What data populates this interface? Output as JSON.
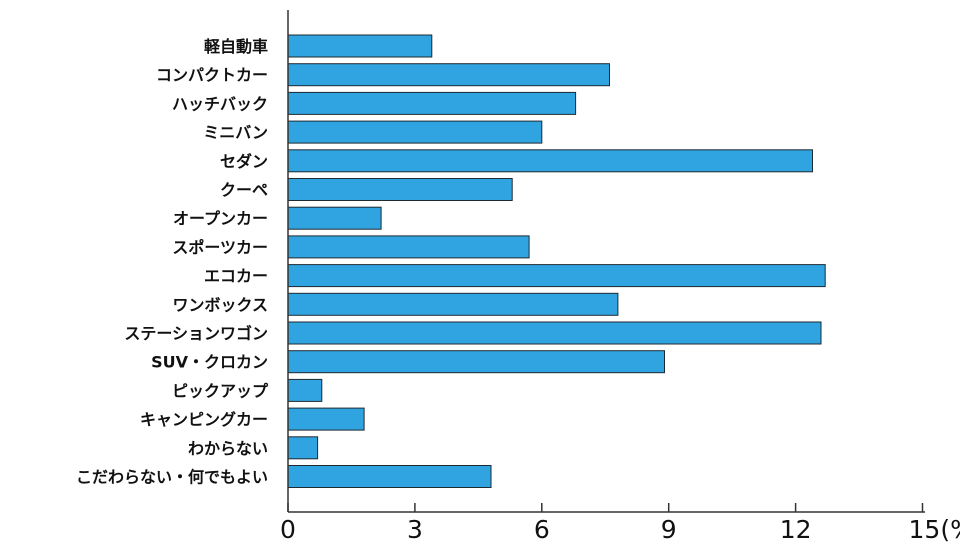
{
  "chart_data": {
    "type": "bar",
    "orientation": "horizontal",
    "title": "",
    "xlabel": "",
    "ylabel": "",
    "unit": "(%)",
    "xlim": [
      0,
      15
    ],
    "xticks": [
      "0",
      "3",
      "6",
      "9",
      "12",
      "15"
    ],
    "grid": false,
    "legend": "none",
    "bar_color": "#2FA4E0",
    "bar_stroke": "#1f2a33",
    "categories": [
      "軽自動車",
      "コンパクトカー",
      "ハッチバック",
      "ミニバン",
      "セダン",
      "クーペ",
      "オープンカー",
      "スポーツカー",
      "エコカー",
      "ワンボックス",
      "ステーションワゴン",
      "SUV・クロカン",
      "ピックアップ",
      "キャンピングカー",
      "わからない",
      "こだわらない・何でもよい"
    ],
    "values": [
      3.4,
      7.6,
      6.8,
      6.0,
      12.4,
      5.3,
      2.2,
      5.7,
      12.7,
      7.8,
      12.6,
      8.9,
      0.8,
      1.8,
      0.7,
      4.8
    ]
  }
}
